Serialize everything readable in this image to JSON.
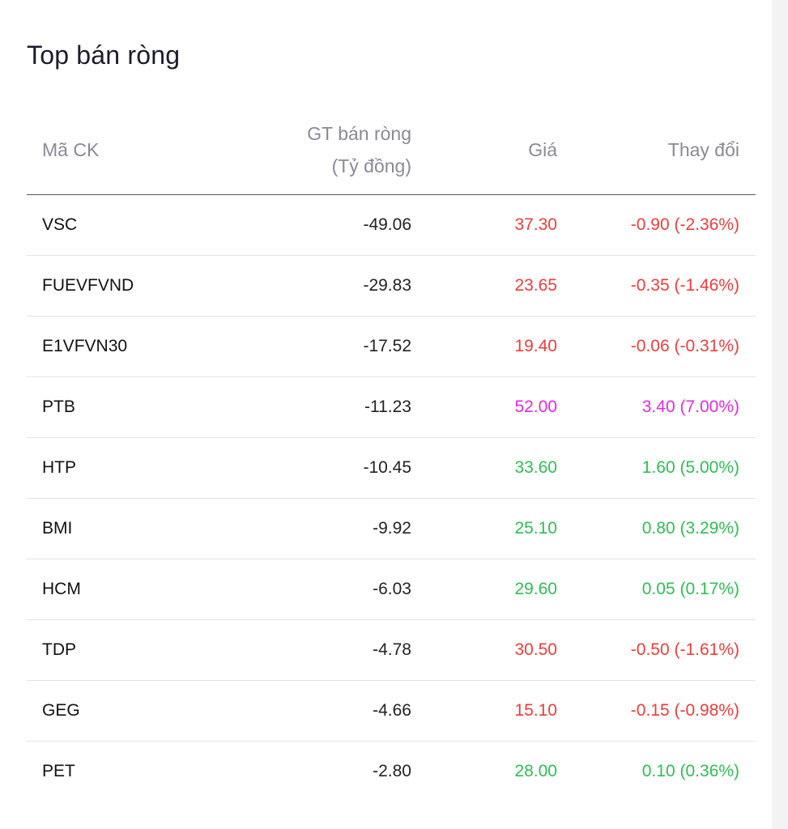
{
  "title": "Top bán ròng",
  "colors": {
    "down": "#f23b3b",
    "up": "#2fbf52",
    "ceiling": "#e629e6"
  },
  "table": {
    "headers": {
      "code": "Mã CK",
      "value_line1": "GT bán ròng",
      "value_line2": "(Tỷ đồng)",
      "price": "Giá",
      "change": "Thay đổi"
    },
    "rows": [
      {
        "code": "VSC",
        "value": "-49.06",
        "price": "37.30",
        "change": "-0.90 (-2.36%)",
        "trend": "down"
      },
      {
        "code": "FUEVFVND",
        "value": "-29.83",
        "price": "23.65",
        "change": "-0.35 (-1.46%)",
        "trend": "down"
      },
      {
        "code": "E1VFVN30",
        "value": "-17.52",
        "price": "19.40",
        "change": "-0.06 (-0.31%)",
        "trend": "down"
      },
      {
        "code": "PTB",
        "value": "-11.23",
        "price": "52.00",
        "change": "3.40 (7.00%)",
        "trend": "ceiling"
      },
      {
        "code": "HTP",
        "value": "-10.45",
        "price": "33.60",
        "change": "1.60 (5.00%)",
        "trend": "up"
      },
      {
        "code": "BMI",
        "value": "-9.92",
        "price": "25.10",
        "change": "0.80 (3.29%)",
        "trend": "up"
      },
      {
        "code": "HCM",
        "value": "-6.03",
        "price": "29.60",
        "change": "0.05 (0.17%)",
        "trend": "up"
      },
      {
        "code": "TDP",
        "value": "-4.78",
        "price": "30.50",
        "change": "-0.50 (-1.61%)",
        "trend": "down"
      },
      {
        "code": "GEG",
        "value": "-4.66",
        "price": "15.10",
        "change": "-0.15 (-0.98%)",
        "trend": "down"
      },
      {
        "code": "PET",
        "value": "-2.80",
        "price": "28.00",
        "change": "0.10 (0.36%)",
        "trend": "up"
      }
    ]
  }
}
